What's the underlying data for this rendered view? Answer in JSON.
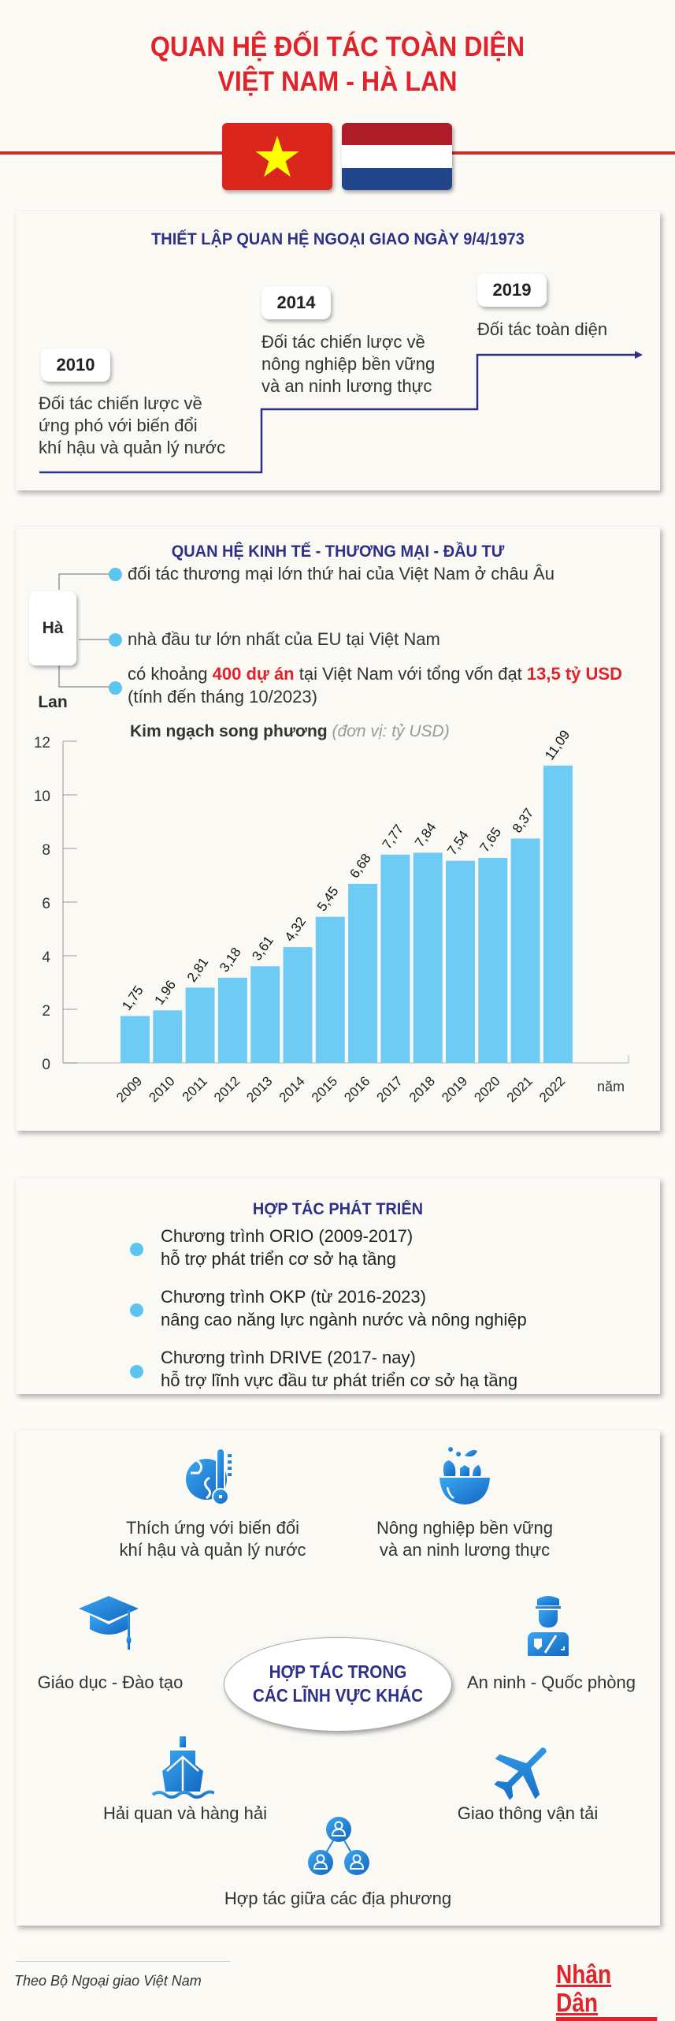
{
  "header": {
    "title_line1": "QUAN HỆ ĐỐI TÁC TOÀN DIỆN",
    "title_line2": "VIỆT NAM - HÀ LAN",
    "flags": [
      "vietnam-flag",
      "netherlands-flag"
    ],
    "colors": {
      "title": "#e0242b",
      "section_title": "#2e3088",
      "bar": "#6ecbf3",
      "dot": "#5bc4ef",
      "icon": "#1d7fd3"
    }
  },
  "timeline": {
    "title": "THIẾT LẬP QUAN HỆ NGOẠI GIAO NGÀY 9/4/1973",
    "milestones": [
      {
        "year": "2010",
        "lines": [
          "Đối tác chiến lược về",
          "ứng phó với biến đổi",
          "khí hậu và quản lý nước"
        ]
      },
      {
        "year": "2014",
        "lines": [
          "Đối tác chiến lược về",
          "nông nghiệp bền vững",
          "và an ninh lương thực"
        ]
      },
      {
        "year": "2019",
        "lines": [
          "Đối tác toàn diện"
        ]
      }
    ]
  },
  "economy": {
    "title": "QUAN HỆ KINH TẾ - THƯƠNG MẠI - ĐẦU TƯ",
    "country": "Hà Lan",
    "item1": "đối tác thương mại lớn thứ hai của Việt Nam ở châu Âu",
    "item2": "nhà đầu tư lớn nhất của EU tại Việt Nam",
    "item3": {
      "part1": "có khoảng ",
      "highlight1": "400 dự án",
      "part2": " tại Việt Nam với tổng vốn đạt ",
      "highlight2": "13,5 tỷ USD",
      "line2": "(tính đến tháng 10/2023)"
    }
  },
  "chart_data": {
    "type": "bar",
    "title": "Kim ngạch song phương",
    "subtitle": "(đơn vị: tỷ USD)",
    "xlabel": "năm",
    "ylabel": "",
    "categories": [
      "2009",
      "2010",
      "2011",
      "2012",
      "2013",
      "2014",
      "2015",
      "2016",
      "2017",
      "2018",
      "2019",
      "2020",
      "2021",
      "2022"
    ],
    "values": [
      1.75,
      1.96,
      2.81,
      3.18,
      3.61,
      4.32,
      5.45,
      6.68,
      7.77,
      7.84,
      7.54,
      7.65,
      8.37,
      11.09
    ],
    "value_labels": [
      "1,75",
      "1,96",
      "2,81",
      "3,18",
      "3,61",
      "4,32",
      "5,45",
      "6,68",
      "7,77",
      "7,84",
      "7,54",
      "7,65",
      "8,37",
      "11,09"
    ],
    "ylim": [
      0,
      12
    ],
    "yticks": [
      0,
      2,
      4,
      6,
      8,
      10,
      12
    ],
    "ytick_labels": [
      "0",
      "2",
      "4",
      "6",
      "8",
      "10",
      "12"
    ],
    "grid": false,
    "legend": "none"
  },
  "development": {
    "title": "HỢP TÁC PHÁT TRIỂN",
    "items": [
      {
        "line1": "Chương trình ORIO (2009-2017)",
        "line2": "hỗ trợ phát triển cơ sở hạ tầng"
      },
      {
        "line1": "Chương trình OKP (từ 2016-2023)",
        "line2": "nâng cao năng lực ngành nước và nông nghiệp"
      },
      {
        "line1": "Chương trình DRIVE (2017- nay)",
        "line2": "hỗ trợ lĩnh vực đầu tư phát triển cơ sở hạ tầng"
      }
    ]
  },
  "other_fields": {
    "center_line1": "HỢP TÁC TRONG",
    "center_line2": "CÁC LĨNH VỰC KHÁC",
    "items": [
      {
        "icon": "climate-thermometer-icon",
        "line1": "Thích ứng với biến đổi",
        "line2": "khí hậu và quản lý nước"
      },
      {
        "icon": "salad-bowl-icon",
        "line1": "Nông nghiệp bền vững",
        "line2": "và an ninh lương thực"
      },
      {
        "icon": "graduation-cap-icon",
        "line1": "Giáo dục - Đào tạo"
      },
      {
        "icon": "police-officer-icon",
        "line1": "An ninh - Quốc phòng"
      },
      {
        "icon": "ship-icon",
        "line1": "Hải quan và hàng hải"
      },
      {
        "icon": "airplane-icon",
        "line1": "Giao thông vận tải"
      },
      {
        "icon": "people-network-icon",
        "line1": "Hợp tác giữa các địa phương"
      }
    ]
  },
  "footer": {
    "source": "Theo Bộ Ngoại giao Việt Nam",
    "logo": "Nhân Dân"
  }
}
